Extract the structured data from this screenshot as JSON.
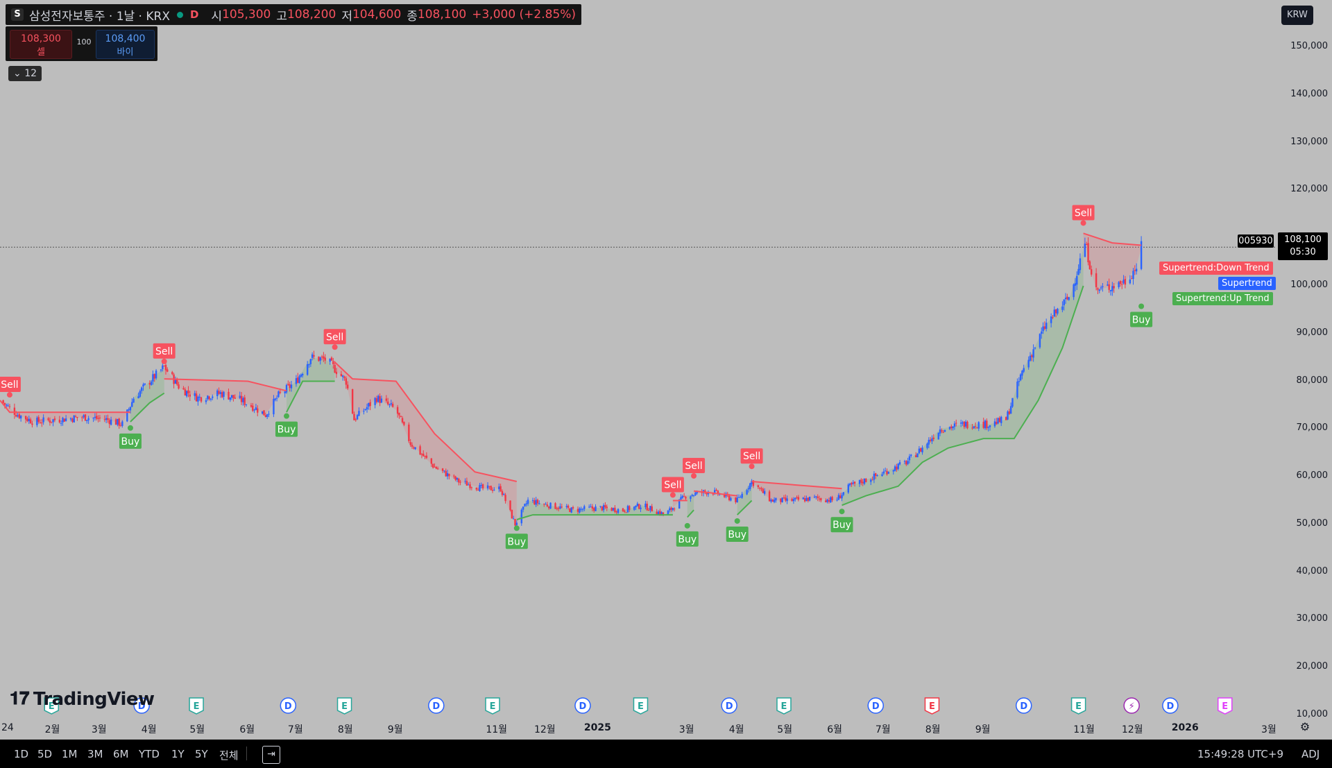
{
  "header": {
    "symbol_badge": "S",
    "title": "삼성전자보통주 · 1날 · KRX",
    "flag": "D",
    "open_label": "시",
    "open": "105,300",
    "high_label": "고",
    "high": "108,200",
    "low_label": "저",
    "low": "104,600",
    "close_label": "종",
    "close": "108,100",
    "change": "+3,000 (+2.85%)"
  },
  "trade": {
    "sell_price": "108,300",
    "sell_label": "셀",
    "quantity": "100",
    "buy_price": "108,400",
    "buy_label": "바이"
  },
  "indicators_toggle": "12",
  "currency": "KRW",
  "symbol_code": "005930",
  "last_price": "108,100",
  "countdown": "05:30",
  "indicator_tags": {
    "down": "Supertrend:Down Trend",
    "main": "Supertrend",
    "up": "Supertrend:Up Trend"
  },
  "logo": "TradingView",
  "bottom": {
    "timeframes": [
      "1D",
      "5D",
      "1M",
      "3M",
      "6M",
      "YTD",
      "1Y",
      "5Y",
      "전체"
    ],
    "clock": "15:49:28 UTC+9",
    "adj": "ADJ"
  },
  "colors": {
    "up": "#2962ff",
    "down": "#f23645",
    "uptrend": "#4caf50",
    "downtrend": "#f7525f",
    "background": "#bdbdbd"
  },
  "chart_data": {
    "type": "candlestick",
    "title": "삼성전자보통주 · 1날 · KRX",
    "y_axis": {
      "ticks": [
        10000,
        20000,
        30000,
        40000,
        50000,
        60000,
        70000,
        80000,
        90000,
        100000,
        110000,
        120000,
        130000,
        140000,
        150000
      ],
      "tick_labels": [
        "10,000",
        "20,000",
        "30,000",
        "40,000",
        "50,000",
        "60,000",
        "70,000",
        "80,000",
        "90,000",
        "100,000",
        "110,000",
        "120,000",
        "130,000",
        "140,000",
        "150,000"
      ],
      "ylim": [
        6500,
        157000
      ]
    },
    "x_axis": {
      "labels": [
        {
          "label": "24",
          "date": "2024-01-01"
        },
        {
          "label": "2월",
          "date": "2024-02-01"
        },
        {
          "label": "3월",
          "date": "2024-03-01"
        },
        {
          "label": "4월",
          "date": "2024-04-01"
        },
        {
          "label": "5월",
          "date": "2024-05-01"
        },
        {
          "label": "6월",
          "date": "2024-06-01"
        },
        {
          "label": "7월",
          "date": "2024-07-01"
        },
        {
          "label": "8월",
          "date": "2024-08-01"
        },
        {
          "label": "9월",
          "date": "2024-09-01"
        },
        {
          "label": "11월",
          "date": "2024-11-01"
        },
        {
          "label": "12월",
          "date": "2024-12-01"
        },
        {
          "label": "2025",
          "date": "2025-01-01"
        },
        {
          "label": "3월",
          "date": "2025-03-01"
        },
        {
          "label": "4월",
          "date": "2025-04-01"
        },
        {
          "label": "5월",
          "date": "2025-05-01"
        },
        {
          "label": "6월",
          "date": "2025-06-01"
        },
        {
          "label": "7월",
          "date": "2025-07-01"
        },
        {
          "label": "8월",
          "date": "2025-08-01"
        },
        {
          "label": "9월",
          "date": "2025-09-01"
        },
        {
          "label": "11월",
          "date": "2025-11-01"
        },
        {
          "label": "12월",
          "date": "2025-12-01"
        },
        {
          "label": "2026",
          "date": "2026-01-01"
        },
        {
          "label": "3월",
          "date": "2026-03-01"
        }
      ],
      "xlim": [
        "2023-12-30",
        "2026-03-02"
      ]
    },
    "price_series": [
      [
        "2023-12-30",
        76000
      ],
      [
        "2024-01-10",
        73000
      ],
      [
        "2024-01-20",
        71500
      ],
      [
        "2024-02-05",
        72000
      ],
      [
        "2024-02-20",
        72500
      ],
      [
        "2024-03-05",
        72000
      ],
      [
        "2024-03-15",
        71000
      ],
      [
        "2024-03-22",
        76500
      ],
      [
        "2024-04-01",
        80000
      ],
      [
        "2024-04-10",
        83000
      ],
      [
        "2024-04-20",
        78500
      ],
      [
        "2024-05-01",
        76500
      ],
      [
        "2024-05-15",
        77500
      ],
      [
        "2024-05-28",
        76000
      ],
      [
        "2024-06-05",
        74500
      ],
      [
        "2024-06-12",
        73000
      ],
      [
        "2024-06-20",
        77000
      ],
      [
        "2024-07-01",
        80000
      ],
      [
        "2024-07-10",
        85000
      ],
      [
        "2024-07-20",
        84500
      ],
      [
        "2024-08-01",
        80000
      ],
      [
        "2024-08-06",
        72000
      ],
      [
        "2024-08-20",
        76500
      ],
      [
        "2024-09-01",
        74000
      ],
      [
        "2024-09-10",
        67000
      ],
      [
        "2024-09-25",
        62000
      ],
      [
        "2024-10-10",
        59000
      ],
      [
        "2024-10-25",
        57500
      ],
      [
        "2024-11-05",
        57500
      ],
      [
        "2024-11-14",
        50000
      ],
      [
        "2024-11-22",
        55000
      ],
      [
        "2024-12-05",
        54000
      ],
      [
        "2024-12-20",
        53000
      ],
      [
        "2025-01-05",
        53500
      ],
      [
        "2025-01-20",
        53000
      ],
      [
        "2025-02-01",
        54000
      ],
      [
        "2025-02-15",
        52000
      ],
      [
        "2025-02-28",
        56000
      ],
      [
        "2025-03-15",
        57000
      ],
      [
        "2025-04-01",
        55000
      ],
      [
        "2025-04-10",
        59000
      ],
      [
        "2025-04-22",
        55000
      ],
      [
        "2025-05-05",
        55000
      ],
      [
        "2025-05-20",
        55500
      ],
      [
        "2025-06-01",
        55000
      ],
      [
        "2025-06-10",
        58000
      ],
      [
        "2025-06-25",
        60000
      ],
      [
        "2025-07-15",
        63000
      ],
      [
        "2025-07-25",
        66000
      ],
      [
        "2025-08-05",
        70000
      ],
      [
        "2025-08-20",
        71000
      ],
      [
        "2025-09-05",
        71000
      ],
      [
        "2025-09-15",
        72000
      ],
      [
        "2025-09-25",
        82000
      ],
      [
        "2025-10-10",
        92000
      ],
      [
        "2025-10-25",
        98000
      ],
      [
        "2025-11-03",
        109000
      ],
      [
        "2025-11-10",
        99000
      ],
      [
        "2025-11-20",
        100000
      ],
      [
        "2025-11-28",
        101000
      ],
      [
        "2025-12-05",
        104000
      ],
      [
        "2025-12-08",
        108100
      ]
    ],
    "supertrend_down": [
      [
        [
          "2023-12-30",
          76000
        ],
        [
          "2024-01-05",
          73500
        ],
        [
          "2024-03-20",
          73500
        ]
      ],
      [
        [
          "2024-04-10",
          80500
        ],
        [
          "2024-06-01",
          80000
        ],
        [
          "2024-06-25",
          78000
        ]
      ],
      [
        [
          "2024-07-25",
          84000
        ],
        [
          "2024-08-05",
          80500
        ],
        [
          "2024-09-01",
          80000
        ],
        [
          "2024-09-25",
          69000
        ],
        [
          "2024-10-20",
          61000
        ],
        [
          "2024-11-15",
          59000
        ]
      ],
      [
        [
          "2025-02-20",
          55000
        ],
        [
          "2025-03-01",
          55000
        ]
      ],
      [
        [
          "2025-03-05",
          57000
        ],
        [
          "2025-04-01",
          56000
        ]
      ],
      [
        [
          "2025-04-10",
          59000
        ],
        [
          "2025-06-05",
          57500
        ]
      ],
      [
        [
          "2025-11-02",
          111000
        ],
        [
          "2025-11-20",
          109000
        ],
        [
          "2025-12-08",
          108500
        ]
      ]
    ],
    "supertrend_up": [
      [
        [
          "2024-03-20",
          71500
        ],
        [
          "2024-04-01",
          75500
        ],
        [
          "2024-04-10",
          77500
        ]
      ],
      [
        [
          "2024-06-25",
          73500
        ],
        [
          "2024-07-05",
          80000
        ],
        [
          "2024-07-25",
          80000
        ]
      ],
      [
        [
          "2024-11-15",
          51000
        ],
        [
          "2024-11-25",
          52000
        ],
        [
          "2025-02-20",
          52000
        ]
      ],
      [
        [
          "2025-03-01",
          51500
        ],
        [
          "2025-03-05",
          53000
        ]
      ],
      [
        [
          "2025-04-01",
          52000
        ],
        [
          "2025-04-10",
          55000
        ]
      ],
      [
        [
          "2025-06-05",
          54000
        ],
        [
          "2025-06-20",
          56000
        ],
        [
          "2025-07-10",
          58000
        ],
        [
          "2025-07-25",
          63000
        ],
        [
          "2025-08-10",
          66000
        ],
        [
          "2025-09-01",
          68000
        ],
        [
          "2025-09-20",
          68000
        ],
        [
          "2025-10-05",
          76000
        ],
        [
          "2025-10-20",
          87000
        ],
        [
          "2025-11-02",
          100000
        ]
      ]
    ],
    "signals": [
      {
        "type": "Sell",
        "date": "2024-01-05",
        "price": 76000
      },
      {
        "type": "Buy",
        "date": "2024-03-20",
        "price": 70500
      },
      {
        "type": "Sell",
        "date": "2024-04-10",
        "price": 83000
      },
      {
        "type": "Buy",
        "date": "2024-06-25",
        "price": 73000
      },
      {
        "type": "Sell",
        "date": "2024-07-25",
        "price": 86000
      },
      {
        "type": "Buy",
        "date": "2024-11-15",
        "price": 49500
      },
      {
        "type": "Sell",
        "date": "2025-02-20",
        "price": 55000
      },
      {
        "type": "Buy",
        "date": "2025-03-01",
        "price": 50000
      },
      {
        "type": "Sell",
        "date": "2025-03-05",
        "price": 59000
      },
      {
        "type": "Buy",
        "date": "2025-04-01",
        "price": 51000
      },
      {
        "type": "Sell",
        "date": "2025-04-10",
        "price": 61000
      },
      {
        "type": "Buy",
        "date": "2025-06-05",
        "price": 53000
      },
      {
        "type": "Sell",
        "date": "2025-11-02",
        "price": 112000
      },
      {
        "type": "Buy",
        "date": "2025-12-08",
        "price": 96000
      }
    ],
    "current_price_line": 108100,
    "event_markers": [
      {
        "kind": "E",
        "date": "2024-01-31",
        "color": "#26a69a"
      },
      {
        "kind": "D",
        "date": "2024-03-27",
        "color": "#2962ff"
      },
      {
        "kind": "E",
        "date": "2024-04-30",
        "color": "#26a69a"
      },
      {
        "kind": "D",
        "date": "2024-06-26",
        "color": "#2962ff"
      },
      {
        "kind": "E",
        "date": "2024-07-31",
        "color": "#26a69a"
      },
      {
        "kind": "D",
        "date": "2024-09-26",
        "color": "#2962ff"
      },
      {
        "kind": "E",
        "date": "2024-10-31",
        "color": "#26a69a"
      },
      {
        "kind": "D",
        "date": "2024-12-26",
        "color": "#2962ff"
      },
      {
        "kind": "E",
        "date": "2025-01-31",
        "color": "#26a69a"
      },
      {
        "kind": "D",
        "date": "2025-03-27",
        "color": "#2962ff"
      },
      {
        "kind": "E",
        "date": "2025-04-30",
        "color": "#26a69a"
      },
      {
        "kind": "D",
        "date": "2025-06-26",
        "color": "#2962ff"
      },
      {
        "kind": "E",
        "date": "2025-07-31",
        "color": "#f23645"
      },
      {
        "kind": "D",
        "date": "2025-09-26",
        "color": "#2962ff"
      },
      {
        "kind": "E",
        "date": "2025-10-30",
        "color": "#26a69a"
      },
      {
        "kind": "⚡",
        "date": "2025-12-02",
        "color": "#9c27b0"
      },
      {
        "kind": "D",
        "date": "2025-12-26",
        "color": "#2962ff"
      },
      {
        "kind": "E",
        "date": "2026-01-29",
        "color": "#e040fb"
      }
    ]
  }
}
